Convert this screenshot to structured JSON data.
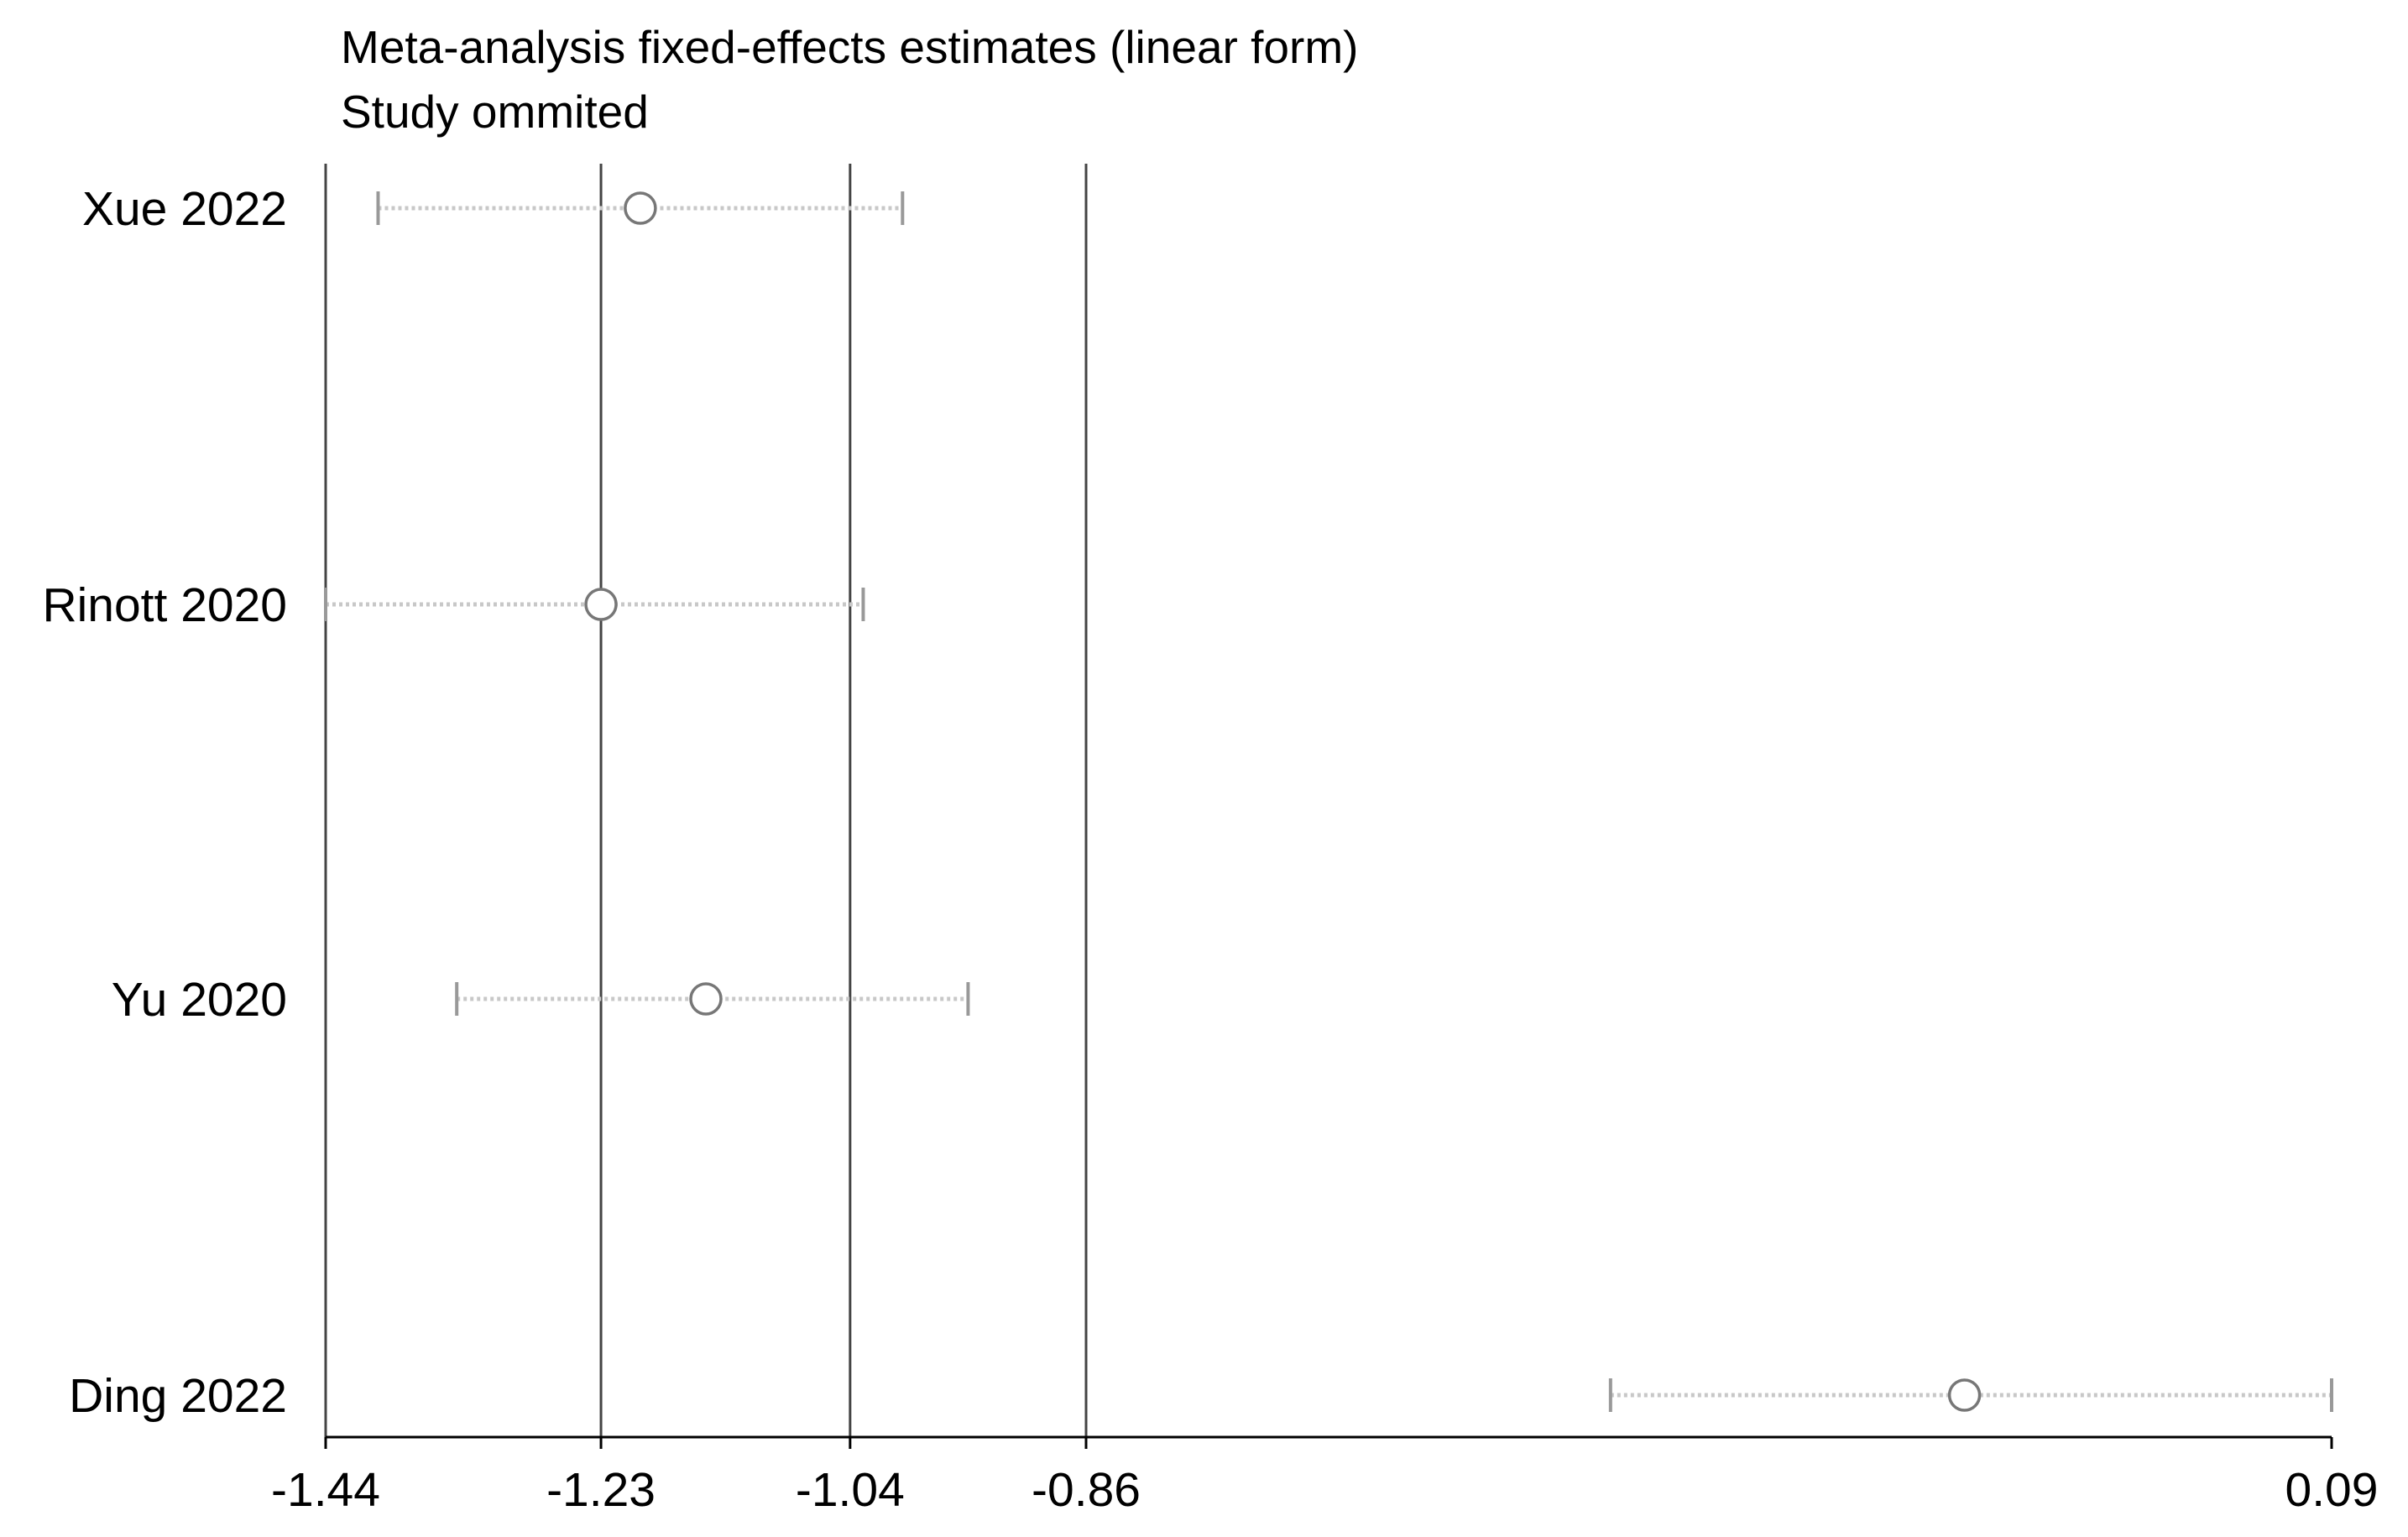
{
  "chart_data": {
    "type": "scatter",
    "title": "Meta-analysis fixed-effects estimates (linear form)",
    "subtitle": "Study ommited",
    "xlabel": "",
    "ylabel": "",
    "xlim": [
      -1.44,
      0.09
    ],
    "ticks": [
      {
        "label": "-1.44",
        "value": -1.44
      },
      {
        "label": "-1.23",
        "value": -1.23
      },
      {
        "label": "-1.04",
        "value": -1.04
      },
      {
        "label": "-0.86",
        "value": -0.86
      },
      {
        "label": "0.09",
        "value": 0.09
      }
    ],
    "reference_lines": [
      -1.44,
      -1.23,
      -1.04,
      -0.86
    ],
    "grid": false,
    "legend": "none",
    "series": [
      {
        "points": [
          {
            "study": "Xue 2022",
            "estimate": -1.2,
            "lower": -1.4,
            "upper": -1.0
          },
          {
            "study": "Rinott 2020",
            "estimate": -1.23,
            "lower": -1.44,
            "upper": -1.03
          },
          {
            "study": "Yu 2020",
            "estimate": -1.15,
            "lower": -1.34,
            "upper": -0.95
          },
          {
            "study": "Ding 2022",
            "estimate": -0.19,
            "lower": -0.46,
            "upper": 0.09
          }
        ]
      }
    ]
  },
  "colors": {
    "axis": "#000000",
    "reference_line": "#444444",
    "ci_line": "#c8c8c8",
    "ci_cap": "#999999",
    "marker": "#777777"
  }
}
